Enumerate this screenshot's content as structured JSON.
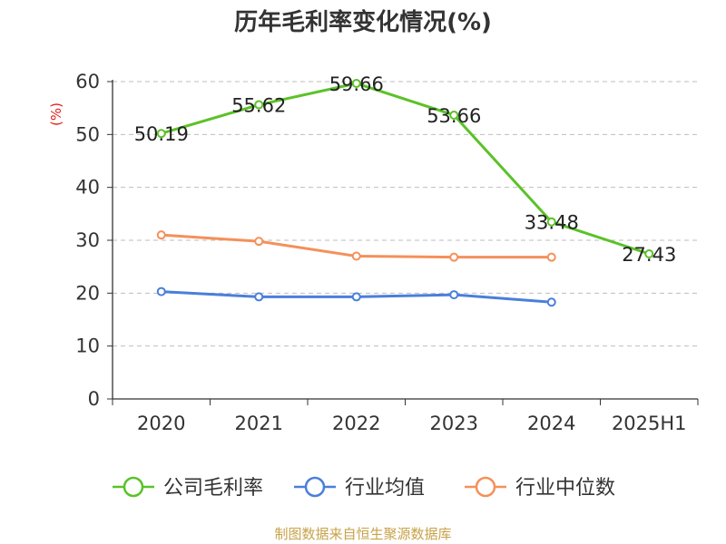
{
  "chart_data": {
    "type": "line",
    "title": "历年毛利率变化情况(%)",
    "y_unit": "(%)",
    "categories": [
      "2020",
      "2021",
      "2022",
      "2023",
      "2024",
      "2025H1"
    ],
    "ylim": [
      0,
      60
    ],
    "yticks": [
      0,
      10,
      20,
      30,
      40,
      50,
      60
    ],
    "grid": true,
    "legend_position": "bottom",
    "series": [
      {
        "name": "公司毛利率",
        "color": "#5bc228",
        "values": [
          50.19,
          55.62,
          59.66,
          53.66,
          33.48,
          27.43
        ],
        "data_labels": [
          "50.19",
          "55.62",
          "59.66",
          "53.66",
          "33.48",
          "27.43"
        ]
      },
      {
        "name": "行业均值",
        "color": "#4a7fdb",
        "values": [
          20.3,
          19.3,
          19.3,
          19.7,
          18.3,
          null
        ],
        "data_labels": null
      },
      {
        "name": "行业中位数",
        "color": "#f5905a",
        "values": [
          31.0,
          29.8,
          27.0,
          26.8,
          26.8,
          null
        ],
        "data_labels": null
      }
    ],
    "source": "制图数据来自恒生聚源数据库"
  }
}
